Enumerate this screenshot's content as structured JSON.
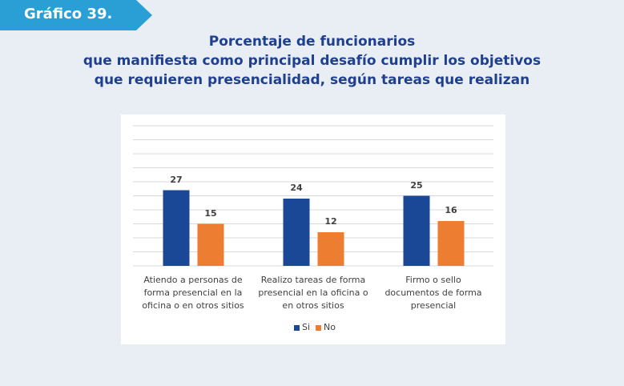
{
  "header": {
    "badge": "Gráfico 39."
  },
  "chart_data": {
    "type": "bar",
    "title": [
      "Porcentaje de funcionarios",
      "que manifiesta como principal desafío cumplir los objetivos",
      "que requieren presencialidad, según tareas que realizan"
    ],
    "categories": [
      "Atiendo a personas de forma presencial en la oficina o en otros sitios",
      "Realizo tareas de forma presencial en la oficina o en otros sitios",
      "Firmo o sello documentos de forma presencial"
    ],
    "series": [
      {
        "name": "Si",
        "color": "#1a4796",
        "values": [
          27,
          24,
          25
        ]
      },
      {
        "name": "No",
        "color": "#ed7d31",
        "values": [
          15,
          12,
          16
        ]
      }
    ],
    "ylim": [
      0,
      50
    ],
    "yticks": [
      0,
      5,
      10,
      15,
      20,
      25,
      30,
      35,
      40,
      45,
      50
    ],
    "grid": true
  }
}
